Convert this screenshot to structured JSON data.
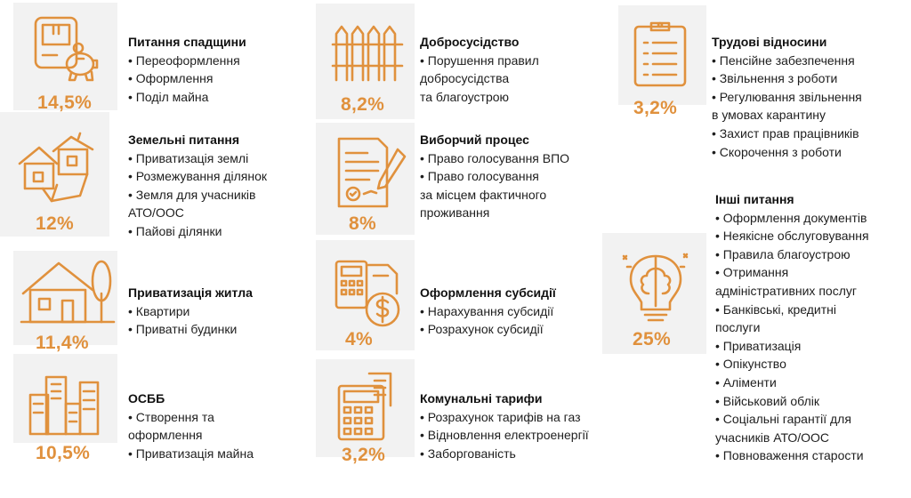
{
  "accent_color": "#e0913d",
  "tile_color": "#f2f2f2",
  "categories": [
    {
      "title": "Питання спадщини",
      "percent": "14,5%",
      "icon": "house-document-piggy-bank-icon",
      "items": [
        "• Переоформлення",
        "• Оформлення",
        "• Поділ майна"
      ]
    },
    {
      "title": "Земельні питання",
      "percent": "12%",
      "icon": "collapsing-houses-icon",
      "items": [
        "• Приватизація землі",
        "• Розмежування ділянок",
        "• Земля для учасників",
        "АТО/ООС",
        "• Пайові ділянки"
      ]
    },
    {
      "title": "Приватизація житла",
      "percent": "11,4%",
      "icon": "house-with-tree-icon",
      "items": [
        "• Квартири",
        "• Приватні будинки"
      ]
    },
    {
      "title": "ОСББ",
      "percent": "10,5%",
      "icon": "apartment-buildings-icon",
      "items": [
        "• Створення та",
        "оформлення",
        "• Приватизація майна"
      ]
    },
    {
      "title": "Добросусідство",
      "percent": "8,2%",
      "icon": "picket-fence-icon",
      "items": [
        "• Порушення правил",
        "добросусідства",
        "та благоустрою"
      ]
    },
    {
      "title": "Виборчий процес",
      "percent": "8%",
      "icon": "signed-document-pen-icon",
      "items": [
        "• Право голосування ВПО",
        "• Право голосування",
        "за місцем фактичного",
        "проживання"
      ]
    },
    {
      "title": "Оформлення субсидії",
      "percent": "4%",
      "icon": "calculator-dollar-coin-icon",
      "items": [
        "• Нарахування субсидії",
        "• Розрахунок субсидії"
      ]
    },
    {
      "title": "Комунальні тарифи",
      "percent": "3,2%",
      "icon": "calculator-receipt-icon",
      "items": [
        "• Розрахунок тарифів на газ",
        "• Відновлення електроенергії",
        "• Заборгованість"
      ]
    },
    {
      "title": "Трудові відносини",
      "percent": "3,2%",
      "icon": "clipboard-list-icon",
      "items": [
        "• Пенсійне забезпечення",
        "• Звільнення з роботи",
        "• Регулювання звільнення",
        "в умовах карантину",
        "• Захист прав працівників",
        "• Скорочення з роботи"
      ]
    },
    {
      "title": "Інші питання",
      "percent": "25%",
      "icon": "brain-lightbulb-icon",
      "items": [
        "• Оформлення документів",
        "• Неякісне обслуговування",
        "• Правила благоустрою",
        "• Отримання",
        "адміністративних послуг",
        "• Банківські, кредитні",
        "послуги",
        "• Приватизація",
        "• Опікунство",
        "• Аліменти",
        "• Військовий облік",
        "• Соціальні гарантії для",
        "учасників АТО/ООС",
        "• Повноваження старости"
      ]
    }
  ]
}
